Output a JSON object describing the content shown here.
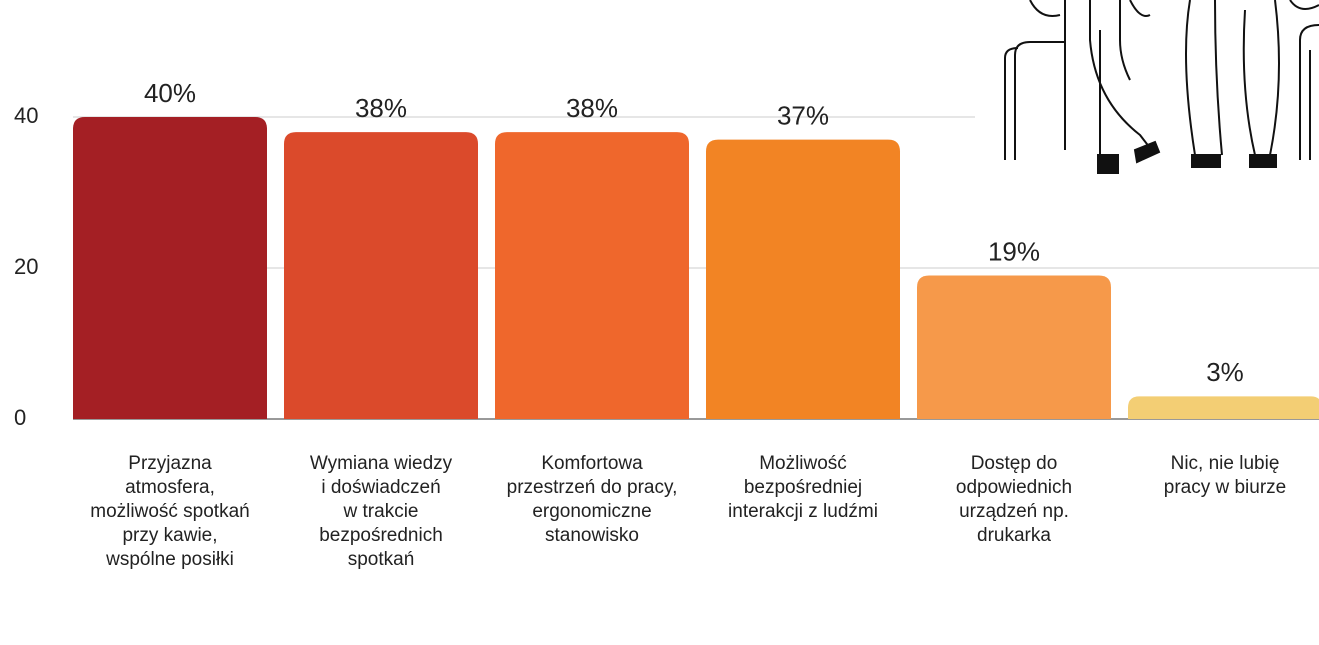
{
  "chart_data": {
    "type": "bar",
    "categories": [
      "Przyjazna\natmosfera,\nmożliwość spotkań\nprzy kawie,\nwspólne posiłki",
      "Wymiana wiedzy\ni doświadczeń\nw trakcie\nbezpośrednich\nspotkań",
      "Komfortowa\nprzestrzeń do pracy,\nergonomiczne\nstanowisko",
      "Możliwość\nbezpośredniej\ninterakcji z ludźmi",
      "Dostęp do\nodpowiednich\nurządzeń np.\ndrukarka",
      "Nic, nie lubię\npracy w biurze"
    ],
    "values": [
      40,
      38,
      38,
      37,
      19,
      3
    ],
    "value_labels": [
      "40%",
      "38%",
      "38%",
      "37%",
      "19%",
      "3%"
    ],
    "colors": [
      "#a41f24",
      "#db4a2b",
      "#ef672c",
      "#f28424",
      "#f6994a",
      "#f3ce74"
    ],
    "ylim": [
      0,
      40
    ],
    "yticks": [
      0,
      20,
      40
    ],
    "grid": true
  }
}
